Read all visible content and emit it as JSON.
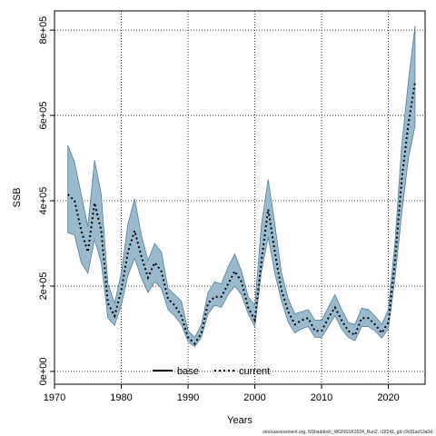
{
  "chart_data": {
    "type": "line",
    "title": "",
    "xlabel": "Years",
    "ylabel": "SSB",
    "xlim": [
      1970,
      2025.5
    ],
    "ylim": [
      -30000,
      845000
    ],
    "x_ticks": [
      1970,
      1980,
      1990,
      2000,
      2010,
      2020
    ],
    "y_ticks": [
      {
        "value": 0,
        "label": "0e+00"
      },
      {
        "value": 200000,
        "label": "2e+05"
      },
      {
        "value": 400000,
        "label": "4e+05"
      },
      {
        "value": 600000,
        "label": "6e+05"
      },
      {
        "value": 800000,
        "label": "8e+05"
      }
    ],
    "grid": true,
    "legend": {
      "placement": "bottom-center",
      "entries": [
        {
          "label": "base",
          "style": "solid",
          "color": "#000000"
        },
        {
          "label": "current",
          "style": "dotted",
          "color": "#000000"
        }
      ]
    },
    "band_color": "#9ab9cc",
    "band_edge_color": "#557f99",
    "x": [
      1972,
      1973,
      1974,
      1975,
      1976,
      1977,
      1978,
      1979,
      1980,
      1981,
      1982,
      1983,
      1984,
      1985,
      1986,
      1987,
      1988,
      1989,
      1990,
      1991,
      1992,
      1993,
      1994,
      1995,
      1996,
      1997,
      1998,
      1999,
      2000,
      2001,
      2002,
      2003,
      2004,
      2005,
      2006,
      2007,
      2008,
      2009,
      2010,
      2011,
      2012,
      2013,
      2014,
      2015,
      2016,
      2017,
      2018,
      2019,
      2020,
      2021,
      2022,
      2023,
      2024
    ],
    "series": [
      {
        "name": "current",
        "values": [
          415000,
          400000,
          330000,
          280000,
          395000,
          330000,
          160000,
          130000,
          190000,
          280000,
          330000,
          270000,
          220000,
          255000,
          235000,
          170000,
          155000,
          130000,
          80000,
          65000,
          90000,
          160000,
          175000,
          175000,
          205000,
          235000,
          210000,
          150000,
          120000,
          260000,
          380000,
          280000,
          190000,
          140000,
          110000,
          120000,
          125000,
          95000,
          95000,
          125000,
          150000,
          120000,
          95000,
          85000,
          125000,
          125000,
          110000,
          90000,
          115000,
          260000,
          450000,
          580000,
          680000
        ]
      },
      {
        "name": "base",
        "values": [
          415000,
          400000,
          330000,
          280000,
          395000,
          330000,
          160000,
          130000,
          190000,
          280000,
          330000,
          270000,
          220000,
          255000,
          235000,
          170000,
          155000,
          130000,
          80000,
          65000,
          90000,
          160000,
          175000,
          175000,
          205000,
          235000,
          210000,
          150000,
          120000,
          260000,
          380000,
          280000,
          190000,
          140000,
          110000,
          120000,
          125000,
          95000,
          95000,
          125000,
          150000,
          120000,
          95000,
          85000,
          125000,
          125000,
          110000,
          90000,
          115000,
          260000,
          450000,
          580000,
          680000
        ]
      }
    ],
    "band_lower": [
      325000,
      320000,
      255000,
      230000,
      310000,
      255000,
      125000,
      108000,
      155000,
      225000,
      265000,
      220000,
      185000,
      210000,
      195000,
      145000,
      130000,
      110000,
      70000,
      58000,
      80000,
      135000,
      155000,
      150000,
      180000,
      200000,
      180000,
      135000,
      105000,
      235000,
      315000,
      230000,
      165000,
      115000,
      90000,
      100000,
      105000,
      80000,
      80000,
      105000,
      130000,
      100000,
      80000,
      72000,
      105000,
      105000,
      95000,
      78000,
      100000,
      220000,
      370000,
      500000,
      575000
    ],
    "band_upper": [
      530000,
      490000,
      415000,
      340000,
      495000,
      415000,
      205000,
      160000,
      230000,
      345000,
      405000,
      320000,
      260000,
      300000,
      280000,
      195000,
      180000,
      165000,
      95000,
      80000,
      110000,
      185000,
      210000,
      205000,
      245000,
      275000,
      235000,
      175000,
      155000,
      345000,
      450000,
      345000,
      230000,
      170000,
      135000,
      140000,
      145000,
      120000,
      120000,
      150000,
      180000,
      145000,
      115000,
      110000,
      148000,
      145000,
      130000,
      110000,
      145000,
      305000,
      530000,
      680000,
      810000
    ]
  },
  "footer_text": "stockassessment.org, NShaddock_WGNSSK2024_Run2, r18241, git:c9c81ac53a0d"
}
